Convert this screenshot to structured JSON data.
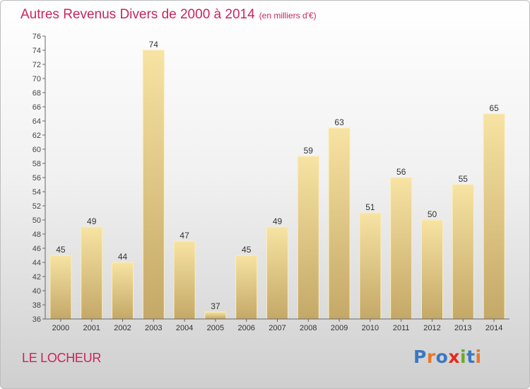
{
  "title": "Autres Revenus Divers de 2000 à 2014",
  "subtitle": "(en milliers d'€)",
  "location": "LE LOCHEUR",
  "logo": {
    "text": "Proxiti",
    "colors": [
      "#3a78c2",
      "#e8762c",
      "#3a78c2",
      "#e62a1a",
      "#6aaa2a",
      "#3a78c2",
      "#e8762c"
    ]
  },
  "colors": {
    "title": "#c8265a",
    "bar_light": "#f7e3a3",
    "bar_dark": "#c4a867",
    "axis": "#666666"
  },
  "chart_data": {
    "type": "bar",
    "categories": [
      "2000",
      "2001",
      "2002",
      "2003",
      "2004",
      "2005",
      "2006",
      "2007",
      "2008",
      "2009",
      "2010",
      "2011",
      "2012",
      "2013",
      "2014"
    ],
    "values": [
      45,
      49,
      44,
      74,
      47,
      37,
      45,
      49,
      59,
      63,
      51,
      56,
      50,
      55,
      65
    ],
    "ylim": [
      36,
      76
    ],
    "yticks": [
      36,
      38,
      40,
      42,
      44,
      46,
      48,
      50,
      52,
      54,
      56,
      58,
      60,
      62,
      64,
      66,
      68,
      70,
      72,
      74,
      76
    ],
    "grid": false,
    "title": "Autres Revenus Divers de 2000 à 2014"
  }
}
